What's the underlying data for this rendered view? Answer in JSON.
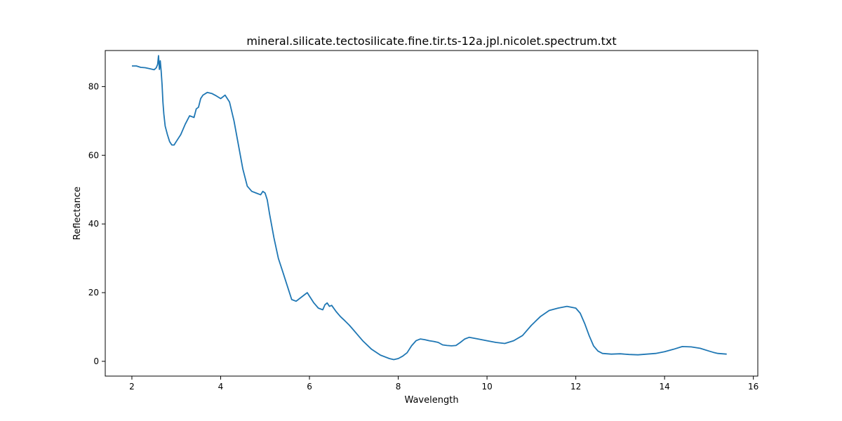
{
  "chart_data": {
    "type": "line",
    "title": "mineral.silicate.tectosilicate.fine.tir.ts-12a.jpl.nicolet.spectrum.txt",
    "xlabel": "Wavelength",
    "ylabel": "Reflectance",
    "xlim": [
      1.4,
      16.1
    ],
    "ylim": [
      -4.3,
      90.5
    ],
    "xticks": [
      2,
      4,
      6,
      8,
      10,
      12,
      14,
      16
    ],
    "yticks": [
      0,
      20,
      40,
      60,
      80
    ],
    "grid": false,
    "legend": "none",
    "series": [
      {
        "color": "#1f77b4",
        "x": [
          2.0,
          2.1,
          2.2,
          2.3,
          2.4,
          2.5,
          2.55,
          2.58,
          2.6,
          2.62,
          2.64,
          2.66,
          2.68,
          2.7,
          2.72,
          2.75,
          2.8,
          2.85,
          2.9,
          2.95,
          3.0,
          3.1,
          3.2,
          3.3,
          3.4,
          3.45,
          3.5,
          3.55,
          3.6,
          3.7,
          3.8,
          3.9,
          4.0,
          4.1,
          4.2,
          4.3,
          4.4,
          4.5,
          4.6,
          4.7,
          4.8,
          4.9,
          4.95,
          5.0,
          5.05,
          5.1,
          5.2,
          5.3,
          5.4,
          5.5,
          5.6,
          5.7,
          5.8,
          5.9,
          5.95,
          6.0,
          6.1,
          6.2,
          6.3,
          6.35,
          6.4,
          6.45,
          6.5,
          6.6,
          6.7,
          6.8,
          6.9,
          7.0,
          7.2,
          7.4,
          7.6,
          7.8,
          7.9,
          8.0,
          8.1,
          8.2,
          8.3,
          8.4,
          8.5,
          8.6,
          8.7,
          8.8,
          8.9,
          9.0,
          9.1,
          9.2,
          9.3,
          9.4,
          9.5,
          9.6,
          9.8,
          10.0,
          10.2,
          10.4,
          10.6,
          10.8,
          11.0,
          11.2,
          11.4,
          11.6,
          11.8,
          12.0,
          12.1,
          12.2,
          12.3,
          12.4,
          12.5,
          12.6,
          12.8,
          13.0,
          13.2,
          13.4,
          13.6,
          13.8,
          14.0,
          14.2,
          14.4,
          14.6,
          14.8,
          15.0,
          15.1,
          15.2,
          15.3,
          15.4
        ],
        "y": [
          86.0,
          86.0,
          85.6,
          85.5,
          85.2,
          84.9,
          85.5,
          86.5,
          89.0,
          85.0,
          87.5,
          84.5,
          80.5,
          75.5,
          72.0,
          68.5,
          66.0,
          64.0,
          63.0,
          63.0,
          64.0,
          66.0,
          69.0,
          71.5,
          71.0,
          73.5,
          74.0,
          76.5,
          77.5,
          78.3,
          78.0,
          77.3,
          76.5,
          77.5,
          75.5,
          70.0,
          63.0,
          56.0,
          51.0,
          49.5,
          49.0,
          48.5,
          49.5,
          49.0,
          47.0,
          43.0,
          36.0,
          30.0,
          26.0,
          22.0,
          18.0,
          17.5,
          18.5,
          19.5,
          20.0,
          19.0,
          17.0,
          15.5,
          15.0,
          16.5,
          17.0,
          16.0,
          16.3,
          14.5,
          13.0,
          11.8,
          10.5,
          9.0,
          6.0,
          3.5,
          1.8,
          0.8,
          0.5,
          0.8,
          1.5,
          2.5,
          4.5,
          6.0,
          6.5,
          6.3,
          6.0,
          5.8,
          5.5,
          4.8,
          4.6,
          4.5,
          4.6,
          5.5,
          6.5,
          7.0,
          6.5,
          6.0,
          5.5,
          5.2,
          6.0,
          7.5,
          10.5,
          13.0,
          14.8,
          15.5,
          16.0,
          15.5,
          14.0,
          11.0,
          7.5,
          4.5,
          3.0,
          2.3,
          2.1,
          2.2,
          2.0,
          1.9,
          2.1,
          2.3,
          2.8,
          3.5,
          4.3,
          4.2,
          3.8,
          3.0,
          2.6,
          2.3,
          2.2,
          2.1
        ]
      }
    ]
  }
}
